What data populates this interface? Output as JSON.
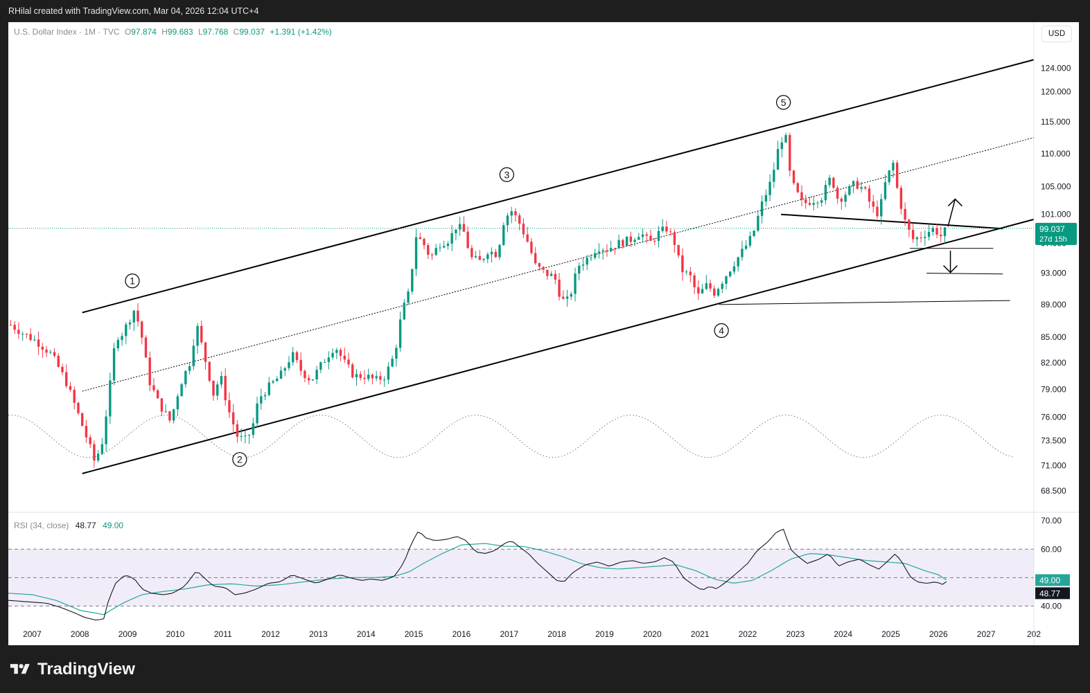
{
  "header": {
    "attribution": "RHilal created with TradingView.com, Mar 04, 2026 12:04 UTC+4"
  },
  "legend": {
    "symbol": "U.S. Dollar Index · 1M · TVC",
    "o_label": "O",
    "o_value": "97.874",
    "h_label": "H",
    "h_value": "99.683",
    "l_label": "L",
    "l_value": "97.768",
    "c_label": "C",
    "c_value": "99.037",
    "change": "+1.391 (+1.42%)"
  },
  "currency_button": "USD",
  "price_tag": {
    "price": "99.037",
    "countdown": "27d 15h"
  },
  "rsi_legend": {
    "label": "RSI (34, close)",
    "rsi_value": "48.77",
    "ma_value": "49.00"
  },
  "footer": {
    "brand": "TradingView"
  },
  "colors": {
    "up": "#089981",
    "down": "#f23645",
    "rsi_line": "#131722",
    "rsi_ma": "#26a69a",
    "rsi_band": "#7e57c2"
  },
  "chart_data": [
    {
      "type": "candlestick",
      "title": "U.S. Dollar Index · 1M · TVC",
      "price_axis_labels": [
        "124.000",
        "120.000",
        "115.000",
        "110.000",
        "105.000",
        "101.000",
        "97.000",
        "93.000",
        "89.000",
        "85.000",
        "82.000",
        "79.000",
        "76.000",
        "73.500",
        "71.000",
        "68.500"
      ],
      "time_axis_labels": [
        "2007",
        "2008",
        "2009",
        "2010",
        "2011",
        "2012",
        "2013",
        "2014",
        "2015",
        "2016",
        "2017",
        "2018",
        "2019",
        "2020",
        "2021",
        "2022",
        "2023",
        "2024",
        "2025",
        "2026",
        "2027",
        "202"
      ],
      "x_range": [
        2006.5,
        2028.0
      ],
      "y_scale": "log",
      "y_range": [
        67.0,
        130.0
      ],
      "last_close": 99.037,
      "anchors": [
        [
          2006.55,
          86.5
        ],
        [
          2006.8,
          85.5
        ],
        [
          2007.1,
          84.5
        ],
        [
          2007.4,
          83.0
        ],
        [
          2007.7,
          80.0
        ],
        [
          2007.95,
          76.5
        ],
        [
          2008.2,
          73.0
        ],
        [
          2008.3,
          71.5
        ],
        [
          2008.45,
          72.8
        ],
        [
          2008.6,
          78.0
        ],
        [
          2008.75,
          85.0
        ],
        [
          2008.9,
          85.5
        ],
        [
          2009.15,
          88.5
        ],
        [
          2009.3,
          85.0
        ],
        [
          2009.45,
          80.0
        ],
        [
          2009.65,
          77.5
        ],
        [
          2009.9,
          75.5
        ],
        [
          2010.1,
          79.5
        ],
        [
          2010.3,
          82.0
        ],
        [
          2010.45,
          86.5
        ],
        [
          2010.6,
          83.0
        ],
        [
          2010.8,
          78.5
        ],
        [
          2010.95,
          80.5
        ],
        [
          2011.1,
          77.0
        ],
        [
          2011.3,
          74.0
        ],
        [
          2011.45,
          73.5
        ],
        [
          2011.6,
          74.5
        ],
        [
          2011.75,
          78.0
        ],
        [
          2012.0,
          79.5
        ],
        [
          2012.2,
          80.5
        ],
        [
          2012.45,
          83.0
        ],
        [
          2012.65,
          81.0
        ],
        [
          2012.85,
          80.0
        ],
        [
          2013.15,
          82.5
        ],
        [
          2013.35,
          84.0
        ],
        [
          2013.55,
          82.0
        ],
        [
          2013.75,
          80.5
        ],
        [
          2014.0,
          80.5
        ],
        [
          2014.2,
          80.0
        ],
        [
          2014.4,
          80.5
        ],
        [
          2014.6,
          83.0
        ],
        [
          2014.75,
          88.0
        ],
        [
          2014.9,
          90.5
        ],
        [
          2015.05,
          98.0
        ],
        [
          2015.2,
          97.0
        ],
        [
          2015.35,
          95.0
        ],
        [
          2015.55,
          97.0
        ],
        [
          2015.75,
          97.5
        ],
        [
          2015.9,
          99.5
        ],
        [
          2016.05,
          98.5
        ],
        [
          2016.2,
          95.0
        ],
        [
          2016.4,
          94.5
        ],
        [
          2016.55,
          96.0
        ],
        [
          2016.75,
          95.5
        ],
        [
          2016.9,
          100.5
        ],
        [
          2017.05,
          101.5
        ],
        [
          2017.2,
          100.0
        ],
        [
          2017.4,
          97.0
        ],
        [
          2017.55,
          94.0
        ],
        [
          2017.75,
          93.0
        ],
        [
          2017.95,
          92.5
        ],
        [
          2018.1,
          89.5
        ],
        [
          2018.25,
          89.5
        ],
        [
          2018.45,
          94.0
        ],
        [
          2018.65,
          95.0
        ],
        [
          2018.85,
          96.5
        ],
        [
          2019.05,
          96.2
        ],
        [
          2019.3,
          97.0
        ],
        [
          2019.55,
          97.5
        ],
        [
          2019.75,
          98.5
        ],
        [
          2019.95,
          97.0
        ],
        [
          2020.15,
          98.5
        ],
        [
          2020.3,
          99.0
        ],
        [
          2020.45,
          97.5
        ],
        [
          2020.6,
          93.5
        ],
        [
          2020.8,
          92.5
        ],
        [
          2020.95,
          90.0
        ],
        [
          2021.15,
          91.5
        ],
        [
          2021.3,
          90.5
        ],
        [
          2021.5,
          92.3
        ],
        [
          2021.7,
          94.2
        ],
        [
          2021.9,
          96.0
        ],
        [
          2022.1,
          98.0
        ],
        [
          2022.3,
          102.5
        ],
        [
          2022.5,
          106.0
        ],
        [
          2022.65,
          111.0
        ],
        [
          2022.78,
          113.5
        ],
        [
          2022.9,
          106.0
        ],
        [
          2023.0,
          104.5
        ],
        [
          2023.15,
          102.5
        ],
        [
          2023.35,
          103.0
        ],
        [
          2023.55,
          103.5
        ],
        [
          2023.75,
          106.5
        ],
        [
          2023.9,
          103.0
        ],
        [
          2024.05,
          104.0
        ],
        [
          2024.25,
          105.5
        ],
        [
          2024.45,
          104.5
        ],
        [
          2024.6,
          102.0
        ],
        [
          2024.75,
          101.0
        ],
        [
          2024.9,
          106.0
        ],
        [
          2025.05,
          108.5
        ],
        [
          2025.15,
          104.0
        ],
        [
          2025.3,
          100.0
        ],
        [
          2025.45,
          97.5
        ],
        [
          2025.6,
          97.8
        ],
        [
          2025.75,
          98.5
        ],
        [
          2025.9,
          99.0
        ],
        [
          2026.05,
          98.0
        ],
        [
          2026.18,
          99.037
        ]
      ],
      "annotations": [
        "1",
        "2",
        "3",
        "4",
        "5"
      ]
    },
    {
      "type": "line",
      "title": "RSI (34, close)",
      "y_axis_labels": [
        "70.00",
        "60.00",
        "40.00"
      ],
      "y_range": [
        34,
        72
      ],
      "bands": [
        40,
        50,
        60
      ],
      "series": [
        {
          "name": "RSI",
          "last_value": 48.77,
          "points": [
            [
              2006.5,
              42.0
            ],
            [
              2006.9,
              41.5
            ],
            [
              2007.3,
              41.0
            ],
            [
              2007.6,
              39.5
            ],
            [
              2007.9,
              37.5
            ],
            [
              2008.1,
              36.0
            ],
            [
              2008.35,
              35.0
            ],
            [
              2008.5,
              35.5
            ],
            [
              2008.6,
              42.0
            ],
            [
              2008.75,
              48.0
            ],
            [
              2008.95,
              51.0
            ],
            [
              2009.15,
              49.5
            ],
            [
              2009.3,
              46.0
            ],
            [
              2009.5,
              44.5
            ],
            [
              2009.75,
              44.0
            ],
            [
              2009.95,
              44.5
            ],
            [
              2010.2,
              47.0
            ],
            [
              2010.45,
              52.5
            ],
            [
              2010.6,
              50.0
            ],
            [
              2010.8,
              47.0
            ],
            [
              2011.05,
              46.5
            ],
            [
              2011.25,
              44.0
            ],
            [
              2011.45,
              44.5
            ],
            [
              2011.7,
              46.0
            ],
            [
              2011.95,
              48.0
            ],
            [
              2012.2,
              48.5
            ],
            [
              2012.45,
              51.0
            ],
            [
              2012.7,
              49.5
            ],
            [
              2012.95,
              48.0
            ],
            [
              2013.2,
              49.5
            ],
            [
              2013.45,
              51.0
            ],
            [
              2013.65,
              50.0
            ],
            [
              2013.9,
              49.0
            ],
            [
              2014.1,
              49.5
            ],
            [
              2014.35,
              49.0
            ],
            [
              2014.6,
              50.5
            ],
            [
              2014.8,
              55.5
            ],
            [
              2014.95,
              62.0
            ],
            [
              2015.1,
              66.5
            ],
            [
              2015.25,
              64.0
            ],
            [
              2015.45,
              63.0
            ],
            [
              2015.7,
              63.5
            ],
            [
              2015.9,
              64.5
            ],
            [
              2016.1,
              63.0
            ],
            [
              2016.3,
              59.0
            ],
            [
              2016.5,
              58.5
            ],
            [
              2016.7,
              59.5
            ],
            [
              2016.9,
              62.0
            ],
            [
              2017.05,
              63.0
            ],
            [
              2017.2,
              61.0
            ],
            [
              2017.4,
              58.5
            ],
            [
              2017.6,
              55.0
            ],
            [
              2017.8,
              52.0
            ],
            [
              2018.0,
              49.0
            ],
            [
              2018.15,
              48.5
            ],
            [
              2018.35,
              52.0
            ],
            [
              2018.6,
              54.5
            ],
            [
              2018.85,
              55.5
            ],
            [
              2019.1,
              54.0
            ],
            [
              2019.35,
              55.5
            ],
            [
              2019.6,
              56.0
            ],
            [
              2019.8,
              55.0
            ],
            [
              2020.05,
              55.5
            ],
            [
              2020.25,
              57.0
            ],
            [
              2020.45,
              55.5
            ],
            [
              2020.65,
              50.0
            ],
            [
              2020.85,
              47.5
            ],
            [
              2021.05,
              45.5
            ],
            [
              2021.2,
              47.0
            ],
            [
              2021.35,
              46.0
            ],
            [
              2021.55,
              48.5
            ],
            [
              2021.8,
              52.0
            ],
            [
              2022.0,
              55.0
            ],
            [
              2022.2,
              59.5
            ],
            [
              2022.45,
              63.0
            ],
            [
              2022.6,
              66.0
            ],
            [
              2022.75,
              67.0
            ],
            [
              2022.9,
              60.0
            ],
            [
              2023.05,
              57.5
            ],
            [
              2023.25,
              55.0
            ],
            [
              2023.5,
              56.5
            ],
            [
              2023.7,
              58.5
            ],
            [
              2023.9,
              54.0
            ],
            [
              2024.1,
              55.5
            ],
            [
              2024.35,
              56.5
            ],
            [
              2024.55,
              54.5
            ],
            [
              2024.75,
              53.0
            ],
            [
              2024.95,
              56.0
            ],
            [
              2025.1,
              58.5
            ],
            [
              2025.25,
              55.0
            ],
            [
              2025.4,
              50.5
            ],
            [
              2025.55,
              48.5
            ],
            [
              2025.75,
              48.0
            ],
            [
              2025.95,
              48.5
            ],
            [
              2026.1,
              47.5
            ],
            [
              2026.18,
              48.77
            ]
          ]
        },
        {
          "name": "RSI-based MA",
          "last_value": 49.0,
          "points": [
            [
              2006.5,
              44.5
            ],
            [
              2007.0,
              44.0
            ],
            [
              2007.5,
              42.0
            ],
            [
              2008.0,
              38.5
            ],
            [
              2008.5,
              37.0
            ],
            [
              2008.9,
              41.0
            ],
            [
              2009.3,
              44.0
            ],
            [
              2009.7,
              45.0
            ],
            [
              2010.2,
              46.0
            ],
            [
              2010.7,
              47.5
            ],
            [
              2011.2,
              47.8
            ],
            [
              2011.7,
              47.0
            ],
            [
              2012.2,
              47.5
            ],
            [
              2012.7,
              48.5
            ],
            [
              2013.2,
              49.5
            ],
            [
              2013.7,
              50.0
            ],
            [
              2014.2,
              50.0
            ],
            [
              2014.6,
              50.5
            ],
            [
              2014.9,
              52.0
            ],
            [
              2015.2,
              55.0
            ],
            [
              2015.6,
              58.5
            ],
            [
              2016.0,
              61.5
            ],
            [
              2016.5,
              62.0
            ],
            [
              2016.9,
              61.0
            ],
            [
              2017.3,
              61.0
            ],
            [
              2017.7,
              59.5
            ],
            [
              2018.1,
              57.5
            ],
            [
              2018.5,
              55.0
            ],
            [
              2018.9,
              53.5
            ],
            [
              2019.3,
              53.0
            ],
            [
              2019.7,
              53.5
            ],
            [
              2020.1,
              54.0
            ],
            [
              2020.5,
              54.5
            ],
            [
              2020.9,
              52.5
            ],
            [
              2021.3,
              49.5
            ],
            [
              2021.7,
              48.0
            ],
            [
              2022.1,
              49.0
            ],
            [
              2022.5,
              52.5
            ],
            [
              2022.9,
              56.5
            ],
            [
              2023.3,
              58.5
            ],
            [
              2023.7,
              58.0
            ],
            [
              2024.1,
              57.0
            ],
            [
              2024.5,
              56.0
            ],
            [
              2024.9,
              55.5
            ],
            [
              2025.3,
              55.0
            ],
            [
              2025.7,
              52.5
            ],
            [
              2026.0,
              51.0
            ],
            [
              2026.18,
              49.0
            ]
          ]
        }
      ]
    }
  ]
}
